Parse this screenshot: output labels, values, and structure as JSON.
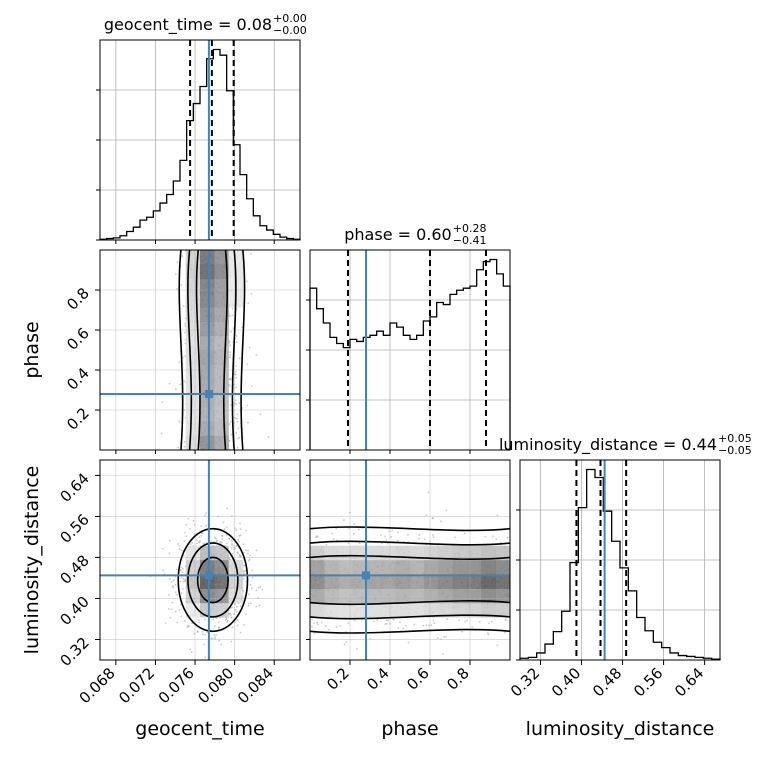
{
  "chart_data": {
    "type": "corner",
    "parameters": [
      "geocent_time",
      "phase",
      "luminosity_distance"
    ],
    "truth": {
      "geocent_time": 0.0774,
      "phase": 0.28,
      "luminosity_distance": 0.445
    },
    "ranges": {
      "geocent_time": [
        0.0664,
        0.0866
      ],
      "phase": [
        0.0,
        1.0
      ],
      "luminosity_distance": [
        0.28,
        0.67
      ]
    },
    "ticks": {
      "geocent_time": [
        0.068,
        0.072,
        0.076,
        0.08,
        0.084
      ],
      "phase": [
        0.2,
        0.4,
        0.6,
        0.8
      ],
      "luminosity_distance": [
        0.32,
        0.4,
        0.48,
        0.56,
        0.64
      ]
    },
    "tick_labels": {
      "geocent_time": [
        "0.068",
        "0.072",
        "0.076",
        "0.080",
        "0.084"
      ],
      "phase": [
        "0.2",
        "0.4",
        "0.6",
        "0.8"
      ],
      "luminosity_distance": [
        "0.32",
        "0.40",
        "0.48",
        "0.56",
        "0.64"
      ]
    },
    "titles": {
      "geocent_time": {
        "main": "geocent_time = 0.08",
        "plus": "+0.00",
        "minus": "−0.00"
      },
      "phase": {
        "main": "phase = 0.60",
        "plus": "+0.28",
        "minus": "−0.41"
      },
      "luminosity_distance": {
        "main": "luminosity_distance = 0.44",
        "plus": "+0.05",
        "minus": "−0.05"
      }
    },
    "quantiles": {
      "geocent_time": [
        0.0755,
        0.0777,
        0.0799
      ],
      "phase": [
        0.19,
        0.6,
        0.88
      ],
      "luminosity_distance": [
        0.39,
        0.437,
        0.487
      ]
    },
    "histograms": {
      "geocent_time": [
        1,
        2,
        3,
        6,
        12,
        18,
        28,
        32,
        41,
        52,
        64,
        83,
        112,
        168,
        192,
        216,
        255,
        268,
        260,
        210,
        134,
        92,
        58,
        34,
        20,
        14,
        8,
        4,
        2,
        1
      ],
      "phase": [
        0.79,
        0.69,
        0.62,
        0.55,
        0.52,
        0.5,
        0.54,
        0.53,
        0.55,
        0.56,
        0.58,
        0.56,
        0.62,
        0.6,
        0.56,
        0.54,
        0.56,
        0.63,
        0.65,
        0.72,
        0.71,
        0.76,
        0.78,
        0.79,
        0.8,
        0.88,
        0.92,
        0.93,
        0.86,
        0.8
      ],
      "luminosity_distance": [
        2,
        3,
        8,
        18,
        32,
        55,
        110,
        172,
        215,
        206,
        168,
        134,
        104,
        78,
        48,
        33,
        20,
        14,
        8,
        5,
        4,
        3,
        2,
        1
      ]
    },
    "grid": true,
    "colors": {
      "truth": "#4682b4",
      "hist": "#000000",
      "density": "#000000",
      "grid": "#b0b0b0"
    }
  }
}
